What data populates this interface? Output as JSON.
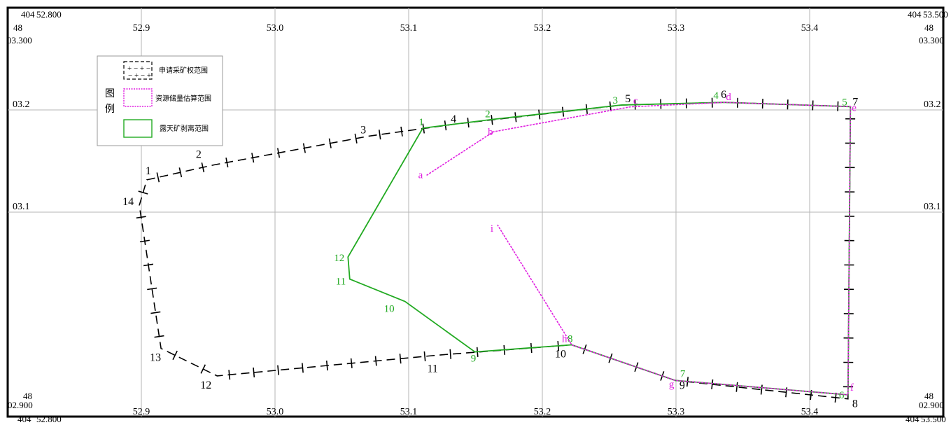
{
  "map": {
    "bounds": {
      "x_min": 52.8,
      "x_max": 53.5,
      "y_min": 2.9,
      "y_max": 3.3
    },
    "corner_labels": {
      "top_left": {
        "prefix": "404",
        "value": "52.800",
        "sub": "48",
        "y_value": "03.300"
      },
      "top_right": {
        "prefix": "404",
        "value": "53.500",
        "sub": "48",
        "y_value": "03.300"
      },
      "bottom_left": {
        "sub": "48",
        "y_value": "02.900",
        "prefix": "404",
        "value": "52.800"
      },
      "bottom_right": {
        "sub": "48",
        "y_value": "02.900",
        "prefix": "404",
        "value": "53.500"
      }
    },
    "x_grid": [
      {
        "v": 52.9,
        "label": "52.9"
      },
      {
        "v": 53.0,
        "label": "53.0"
      },
      {
        "v": 53.1,
        "label": "53.1"
      },
      {
        "v": 53.2,
        "label": "53.2"
      },
      {
        "v": 53.3,
        "label": "53.3"
      },
      {
        "v": 53.4,
        "label": "53.4"
      }
    ],
    "y_grid": [
      {
        "v": 3.2,
        "label": "03.2"
      },
      {
        "v": 3.1,
        "label": "03.1"
      }
    ],
    "legend": {
      "title_chars": [
        "图",
        "例"
      ],
      "items": [
        {
          "label": "申请采矿权范围",
          "color": "#000000"
        },
        {
          "label": "资源储量估算范围",
          "color": "#e020e0"
        },
        {
          "label": "露天矿剥离范围",
          "color": "#22aa22"
        }
      ]
    },
    "colors": {
      "application": "#000000",
      "reserve": "#e020e0",
      "stripping": "#22aa22",
      "grid": "#b5b5b5"
    },
    "application_boundary": [
      {
        "label": "1",
        "x": 53.1106,
        "y": 3.1822
      },
      {
        "label": "2",
        "x": 53.1634,
        "y": 3.1908
      },
      {
        "label": "3",
        "x": 53.2589,
        "y": 3.2048
      },
      {
        "label": "4",
        "x": 53.3353,
        "y": 3.2074
      },
      {
        "label": "5",
        "x": 53.4305,
        "y": 3.2032
      },
      {
        "label": "6",
        "x": 53.4287,
        "y": 2.9213
      },
      {
        "label": "7",
        "x": 53.2994,
        "y": 2.9354
      },
      {
        "label": "8",
        "x": 53.222,
        "y": 2.9702
      },
      {
        "label": "9",
        "x": 53.1496,
        "y": 2.9633
      },
      {
        "label": "10",
        "x": 53.0972,
        "y": 3.0127
      },
      {
        "label": "11",
        "x": 53.0559,
        "y": 3.0345
      },
      {
        "label": "12",
        "x": 53.0546,
        "y": 3.0561
      }
    ],
    "mining_boundary": [
      {
        "label": "1",
        "x": 52.9041,
        "y": 3.1316
      },
      {
        "label": "2",
        "x": 52.9544,
        "y": 3.1462
      },
      {
        "label": "3",
        "x": 53.0702,
        "y": 3.1744
      },
      {
        "label": "4",
        "x": 53.1357,
        "y": 3.1863
      },
      {
        "label": "5",
        "x": 53.2598,
        "y": 3.2048
      },
      {
        "label": "6",
        "x": 53.3367,
        "y": 3.2074
      },
      {
        "label": "7",
        "x": 53.4305,
        "y": 3.2032
      },
      {
        "label": "8",
        "x": 53.4287,
        "y": 2.9173
      },
      {
        "label": "9",
        "x": 53.2994,
        "y": 2.9354
      },
      {
        "label": "10",
        "x": 53.222,
        "y": 2.9702
      },
      {
        "label": "11",
        "x": 53.1212,
        "y": 2.9601
      },
      {
        "label": "12",
        "x": 52.9567,
        "y": 2.9398
      },
      {
        "label": "13",
        "x": 52.9147,
        "y": 2.9667
      },
      {
        "label": "14",
        "x": 52.8985,
        "y": 3.1067
      }
    ],
    "reserve_boundary": [
      {
        "label": "a",
        "x": 53.1134,
        "y": 3.136
      },
      {
        "label": "b",
        "x": 53.1634,
        "y": 3.1786
      },
      {
        "label": "c",
        "x": 53.2659,
        "y": 3.203
      },
      {
        "label": "d",
        "x": 53.3363,
        "y": 3.2074
      },
      {
        "label": "e",
        "x": 53.4305,
        "y": 3.2032
      },
      {
        "label": "f",
        "x": 53.4287,
        "y": 2.9213
      },
      {
        "label": "g",
        "x": 53.2994,
        "y": 2.9354
      },
      {
        "label": "h",
        "x": 53.222,
        "y": 2.9702
      },
      {
        "label": "i",
        "x": 53.1664,
        "y": 3.0877
      }
    ]
  }
}
